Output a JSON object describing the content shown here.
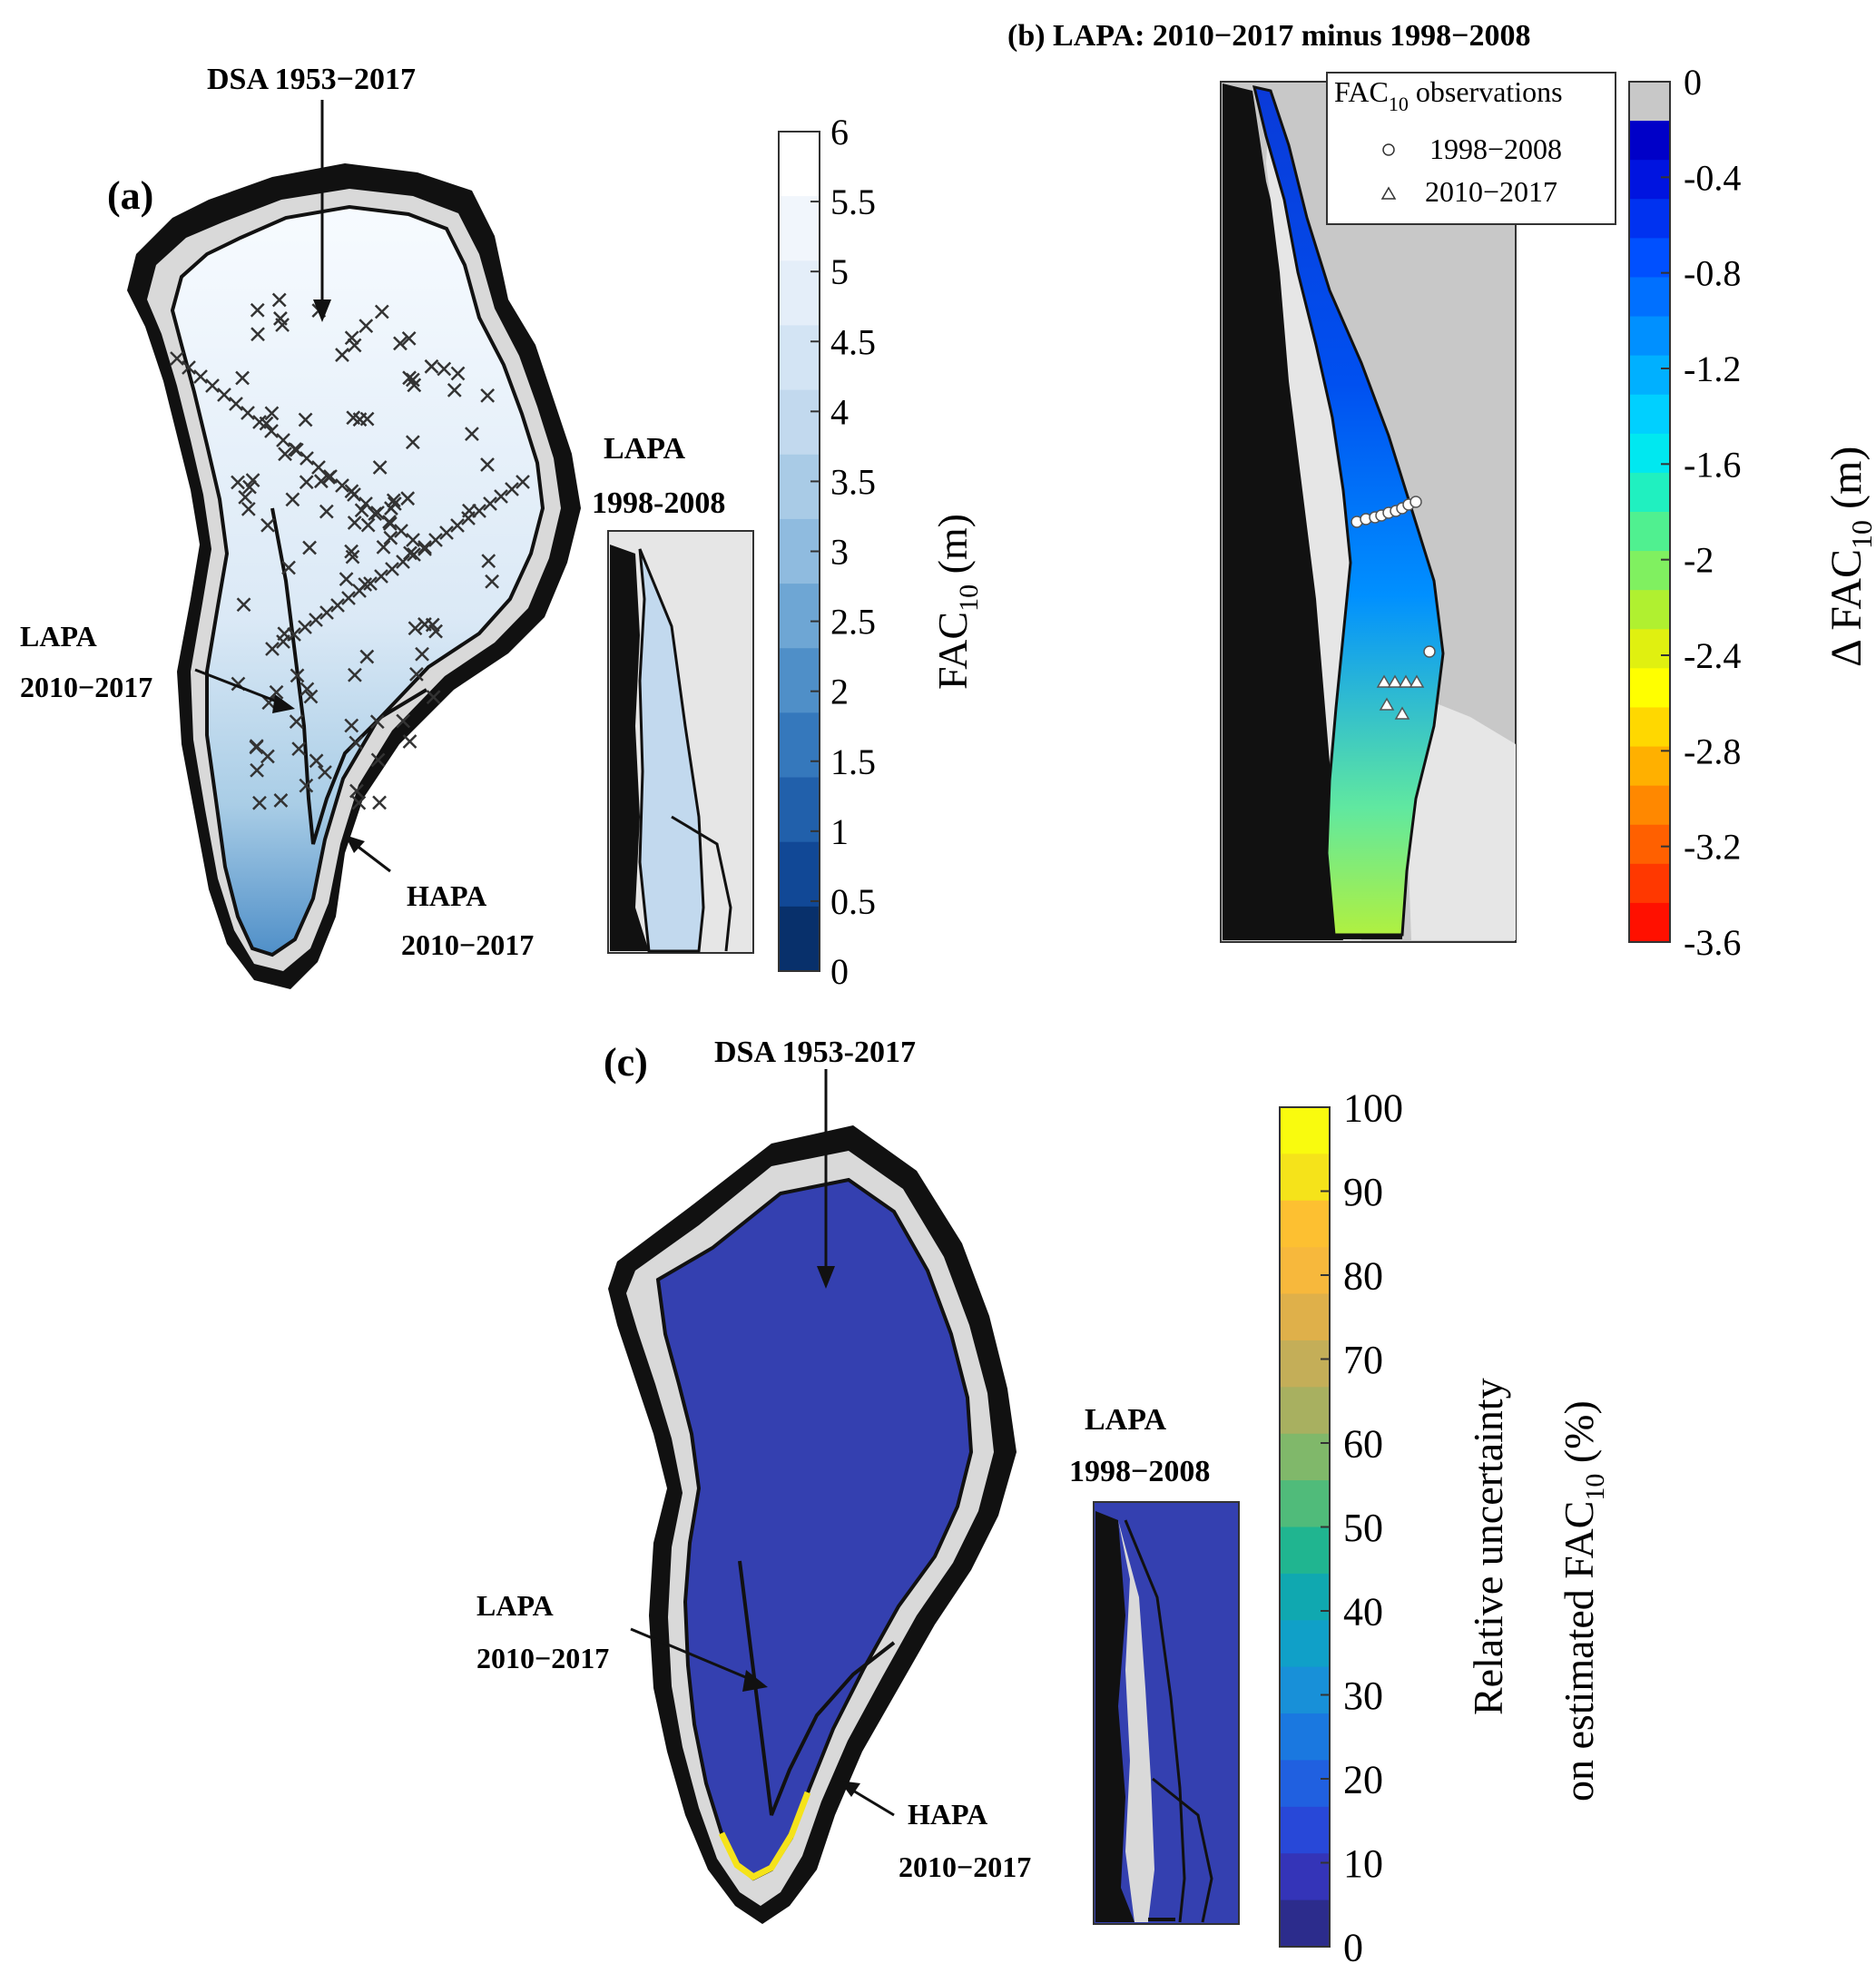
{
  "panel_a": {
    "label": "(a)",
    "dsa_label": "DSA 1953−2017",
    "lapa_label_line1": "LAPA",
    "lapa_label_line2": "2010−2017",
    "hapa_label_line1": "HAPA",
    "hapa_label_line2": "2010−2017",
    "inset_title_line1": "LAPA",
    "inset_title_line2": "1998-2008",
    "colorbar": {
      "label_main": "FAC",
      "label_sub": "10",
      "label_unit": " (m)",
      "ticks": [
        "6",
        "5.5",
        "5",
        "4.5",
        "4",
        "3.5",
        "3",
        "2.5",
        "2",
        "1.5",
        "1",
        "0.5",
        "0"
      ],
      "colors": [
        "#ffffff",
        "#f1f6fc",
        "#e4eef9",
        "#d3e4f4",
        "#c2d9ee",
        "#a9cbe6",
        "#8fbbdf",
        "#6ea6d4",
        "#4f8fc8",
        "#3578bc",
        "#2160ab",
        "#114896",
        "#08306b"
      ]
    }
  },
  "panel_b": {
    "title": "(b) LAPA: 2010−2017 minus 1998−2008",
    "legend": {
      "title_main": "FAC",
      "title_sub": "10",
      "title_rest": " observations",
      "entry1": "1998−2008",
      "entry2": "2010−2017"
    },
    "colorbar": {
      "label_prefix": "Δ FAC",
      "label_sub": "10",
      "label_unit": " (m)",
      "ticks": [
        "0",
        "-0.4",
        "-0.8",
        "-1.2",
        "-1.6",
        "-2",
        "-2.4",
        "-2.8",
        "-3.2",
        "-3.6"
      ],
      "colors": [
        "#c8c8c8",
        "#0000c8",
        "#0014e0",
        "#0032f0",
        "#0050ff",
        "#0070ff",
        "#0090ff",
        "#00b0ff",
        "#00d0ff",
        "#00e8f0",
        "#20f0c0",
        "#50f090",
        "#80f060",
        "#b0f030",
        "#e0f010",
        "#ffff00",
        "#ffd800",
        "#ffb000",
        "#ff8800",
        "#ff6000",
        "#ff3800",
        "#ff1000"
      ]
    }
  },
  "panel_c": {
    "label": "(c)",
    "dsa_label": "DSA 1953-2017",
    "lapa_label_line1": "LAPA",
    "lapa_label_line2": "2010−2017",
    "hapa_label_line1": "HAPA",
    "hapa_label_line2": "2010−2017",
    "inset_title_line1": "LAPA",
    "inset_title_line2": "1998−2008",
    "colorbar": {
      "label_line1": "Relative uncertainty",
      "label_line2_main": "on estimated FAC",
      "label_line2_sub": "10",
      "label_line2_unit": " (%)",
      "ticks": [
        "100",
        "90",
        "80",
        "70",
        "60",
        "50",
        "40",
        "30",
        "20",
        "10",
        "0"
      ],
      "colors": [
        "#f9fb0e",
        "#f5e31a",
        "#fdc031",
        "#f7b83c",
        "#dfb04a",
        "#c4ae58",
        "#a8b060",
        "#80b86a",
        "#50bb7a",
        "#20b590",
        "#10a8b0",
        "#10a0c8",
        "#1890d8",
        "#1a78e0",
        "#2060e0",
        "#2848d8",
        "#3434b8",
        "#2c2c8c"
      ]
    }
  }
}
